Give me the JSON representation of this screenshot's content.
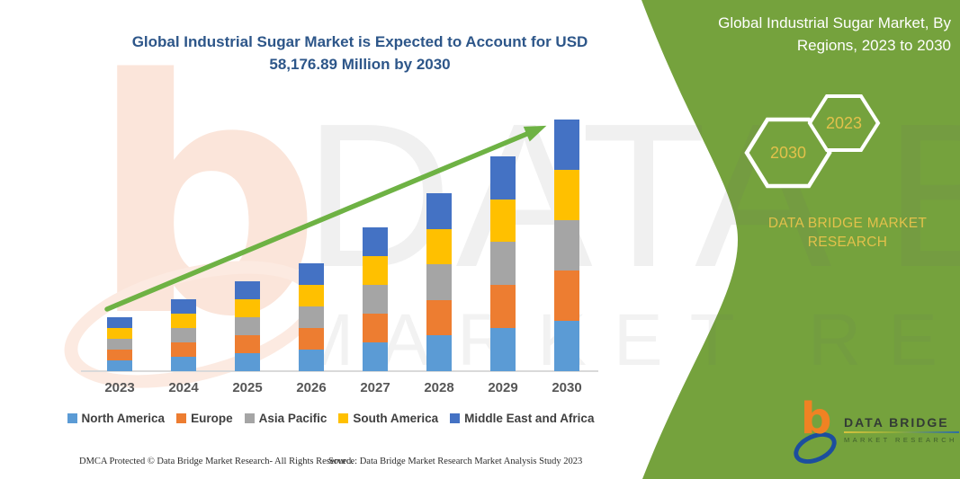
{
  "page": {
    "main_title": "Global Industrial Sugar Market is Expected to Account for USD 58,176.89 Million by 2030",
    "panel": {
      "title": "Global Industrial Sugar Market, By Regions, 2023 to 2030",
      "hex_large": "2030",
      "hex_small": "2023",
      "brand_line1": "DATA BRIDGE MARKET",
      "brand_line2": "RESEARCH",
      "bg_color": "#75A23D",
      "accent_gold": "#E2C14B"
    },
    "logo": {
      "title": "DATA BRIDGE",
      "subtitle": "MARKET RESEARCH",
      "b_color": "#F08223",
      "ring_color": "#1C4E9E"
    },
    "watermark": {
      "glyph": "b",
      "line1": "DATA BRIDGE",
      "line2": "MARKET RESEARCH"
    },
    "footer": {
      "left": "DMCA Protected © Data Bridge Market Research-  All Rights Reserved.",
      "right": "Source: Data Bridge Market Research  Market Analysis Study 2023"
    }
  },
  "chart_data": {
    "type": "bar",
    "stacked": true,
    "title": "Global Industrial Sugar Market is Expected to Account for USD 58,176.89 Million by 2030",
    "unit": "USD Million",
    "categories": [
      "2023",
      "2024",
      "2025",
      "2026",
      "2027",
      "2028",
      "2029",
      "2030"
    ],
    "series": [
      {
        "name": "North America",
        "color": "#5B9BD5",
        "values": [
          2480,
          3320,
          4160,
          4980,
          6640,
          8220,
          9940,
          11635.38
        ]
      },
      {
        "name": "Europe",
        "color": "#ED7D31",
        "values": [
          2480,
          3320,
          4160,
          4980,
          6640,
          8220,
          9940,
          11635.38
        ]
      },
      {
        "name": "Asia Pacific",
        "color": "#A5A5A5",
        "values": [
          2480,
          3320,
          4160,
          4980,
          6640,
          8220,
          9940,
          11635.38
        ]
      },
      {
        "name": "South America",
        "color": "#FFC000",
        "values": [
          2480,
          3320,
          4160,
          4980,
          6640,
          8220,
          9940,
          11635.38
        ]
      },
      {
        "name": "Middle East and Africa",
        "color": "#4472C4",
        "values": [
          2480,
          3320,
          4160,
          4980,
          6640,
          8220,
          9940,
          11635.38
        ]
      }
    ],
    "totals_estimated": [
      12400,
      16600,
      20800,
      24900,
      33200,
      41100,
      49700,
      58176.89
    ],
    "ylim": [
      0,
      60000
    ],
    "grid": false,
    "legend_position": "bottom",
    "trend_arrow": true,
    "arrow_color": "#6EB244"
  }
}
